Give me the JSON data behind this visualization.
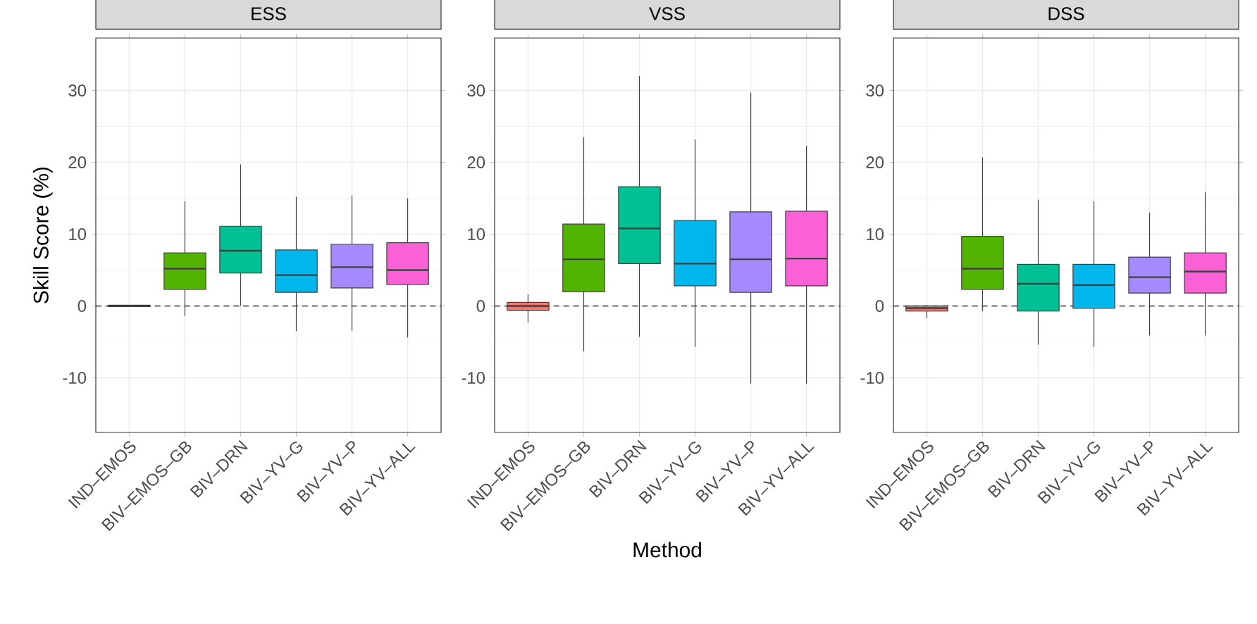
{
  "chart_data": [
    {
      "type": "box",
      "title": "ESS",
      "ylabel": "Skill Score (%)",
      "categories": [
        "IND–EMOS",
        "BIV–EMOS–GB",
        "BIV–DRN",
        "BIV–YV–G",
        "BIV–YV–P",
        "BIV–YV–ALL"
      ],
      "colors": [
        "#F8766D",
        "#53B400",
        "#00C094",
        "#00B6EB",
        "#A58AFF",
        "#FB61D7"
      ],
      "boxes": [
        {
          "low": -0.1,
          "q1": -0.1,
          "median": 0,
          "q3": 0.1,
          "high": 0.1
        },
        {
          "low": -1.4,
          "q1": 2.3,
          "median": 5.2,
          "q3": 7.4,
          "high": 14.6
        },
        {
          "low": 0,
          "q1": 4.6,
          "median": 7.7,
          "q3": 11.1,
          "high": 19.7
        },
        {
          "low": -3.5,
          "q1": 1.9,
          "median": 4.3,
          "q3": 7.8,
          "high": 15.2
        },
        {
          "low": -3.5,
          "q1": 2.5,
          "median": 5.4,
          "q3": 8.6,
          "high": 15.4
        },
        {
          "low": -4.4,
          "q1": 3.0,
          "median": 5.0,
          "q3": 8.8,
          "high": 15.0
        }
      ],
      "ylim": [
        -17.6,
        37.3
      ],
      "yticks": [
        -10,
        0,
        10,
        20,
        30
      ],
      "grid": true,
      "ref_lines": [
        {
          "axis": "y",
          "value": 0,
          "line_style": "dashed"
        }
      ]
    },
    {
      "type": "box",
      "title": "VSS",
      "xlabel": "Method",
      "categories": [
        "IND–EMOS",
        "BIV–EMOS–GB",
        "BIV–DRN",
        "BIV–YV–G",
        "BIV–YV–P",
        "BIV–YV–ALL"
      ],
      "colors": [
        "#F8766D",
        "#53B400",
        "#00C094",
        "#00B6EB",
        "#A58AFF",
        "#FB61D7"
      ],
      "boxes": [
        {
          "low": -2.3,
          "q1": -0.6,
          "median": 0,
          "q3": 0.5,
          "high": 1.6
        },
        {
          "low": -6.3,
          "q1": 2.0,
          "median": 6.5,
          "q3": 11.4,
          "high": 23.5
        },
        {
          "low": -4.3,
          "q1": 5.9,
          "median": 10.8,
          "q3": 16.6,
          "high": 32.0
        },
        {
          "low": -5.7,
          "q1": 2.8,
          "median": 5.9,
          "q3": 11.9,
          "high": 23.2
        },
        {
          "low": -10.8,
          "q1": 1.9,
          "median": 6.5,
          "q3": 13.1,
          "high": 29.7
        },
        {
          "low": -10.8,
          "q1": 2.8,
          "median": 6.6,
          "q3": 13.2,
          "high": 22.3
        }
      ],
      "ylim": [
        -17.6,
        37.3
      ],
      "yticks": [
        -10,
        0,
        10,
        20,
        30
      ],
      "grid": true,
      "ref_lines": [
        {
          "axis": "y",
          "value": 0,
          "line_style": "dashed"
        }
      ]
    },
    {
      "type": "box",
      "title": "DSS",
      "categories": [
        "IND–EMOS",
        "BIV–EMOS–GB",
        "BIV–DRN",
        "BIV–YV–G",
        "BIV–YV–P",
        "BIV–YV–ALL"
      ],
      "colors": [
        "#F8766D",
        "#53B400",
        "#00C094",
        "#00B6EB",
        "#A58AFF",
        "#FB61D7"
      ],
      "boxes": [
        {
          "low": -1.7,
          "q1": -0.7,
          "median": -0.3,
          "q3": 0,
          "high": 0.1
        },
        {
          "low": -0.7,
          "q1": 2.3,
          "median": 5.2,
          "q3": 9.7,
          "high": 20.7
        },
        {
          "low": -5.4,
          "q1": -0.7,
          "median": 3.1,
          "q3": 5.8,
          "high": 14.8
        },
        {
          "low": -5.7,
          "q1": -0.3,
          "median": 2.9,
          "q3": 5.8,
          "high": 14.6
        },
        {
          "low": -4.1,
          "q1": 1.8,
          "median": 4.0,
          "q3": 6.8,
          "high": 13.0
        },
        {
          "low": -4.1,
          "q1": 1.8,
          "median": 4.8,
          "q3": 7.4,
          "high": 15.9
        }
      ],
      "ylim": [
        -17.6,
        37.3
      ],
      "yticks": [
        -10,
        0,
        10,
        20,
        30
      ],
      "grid": true,
      "ref_lines": [
        {
          "axis": "y",
          "value": 0,
          "line_style": "dashed"
        }
      ]
    }
  ]
}
